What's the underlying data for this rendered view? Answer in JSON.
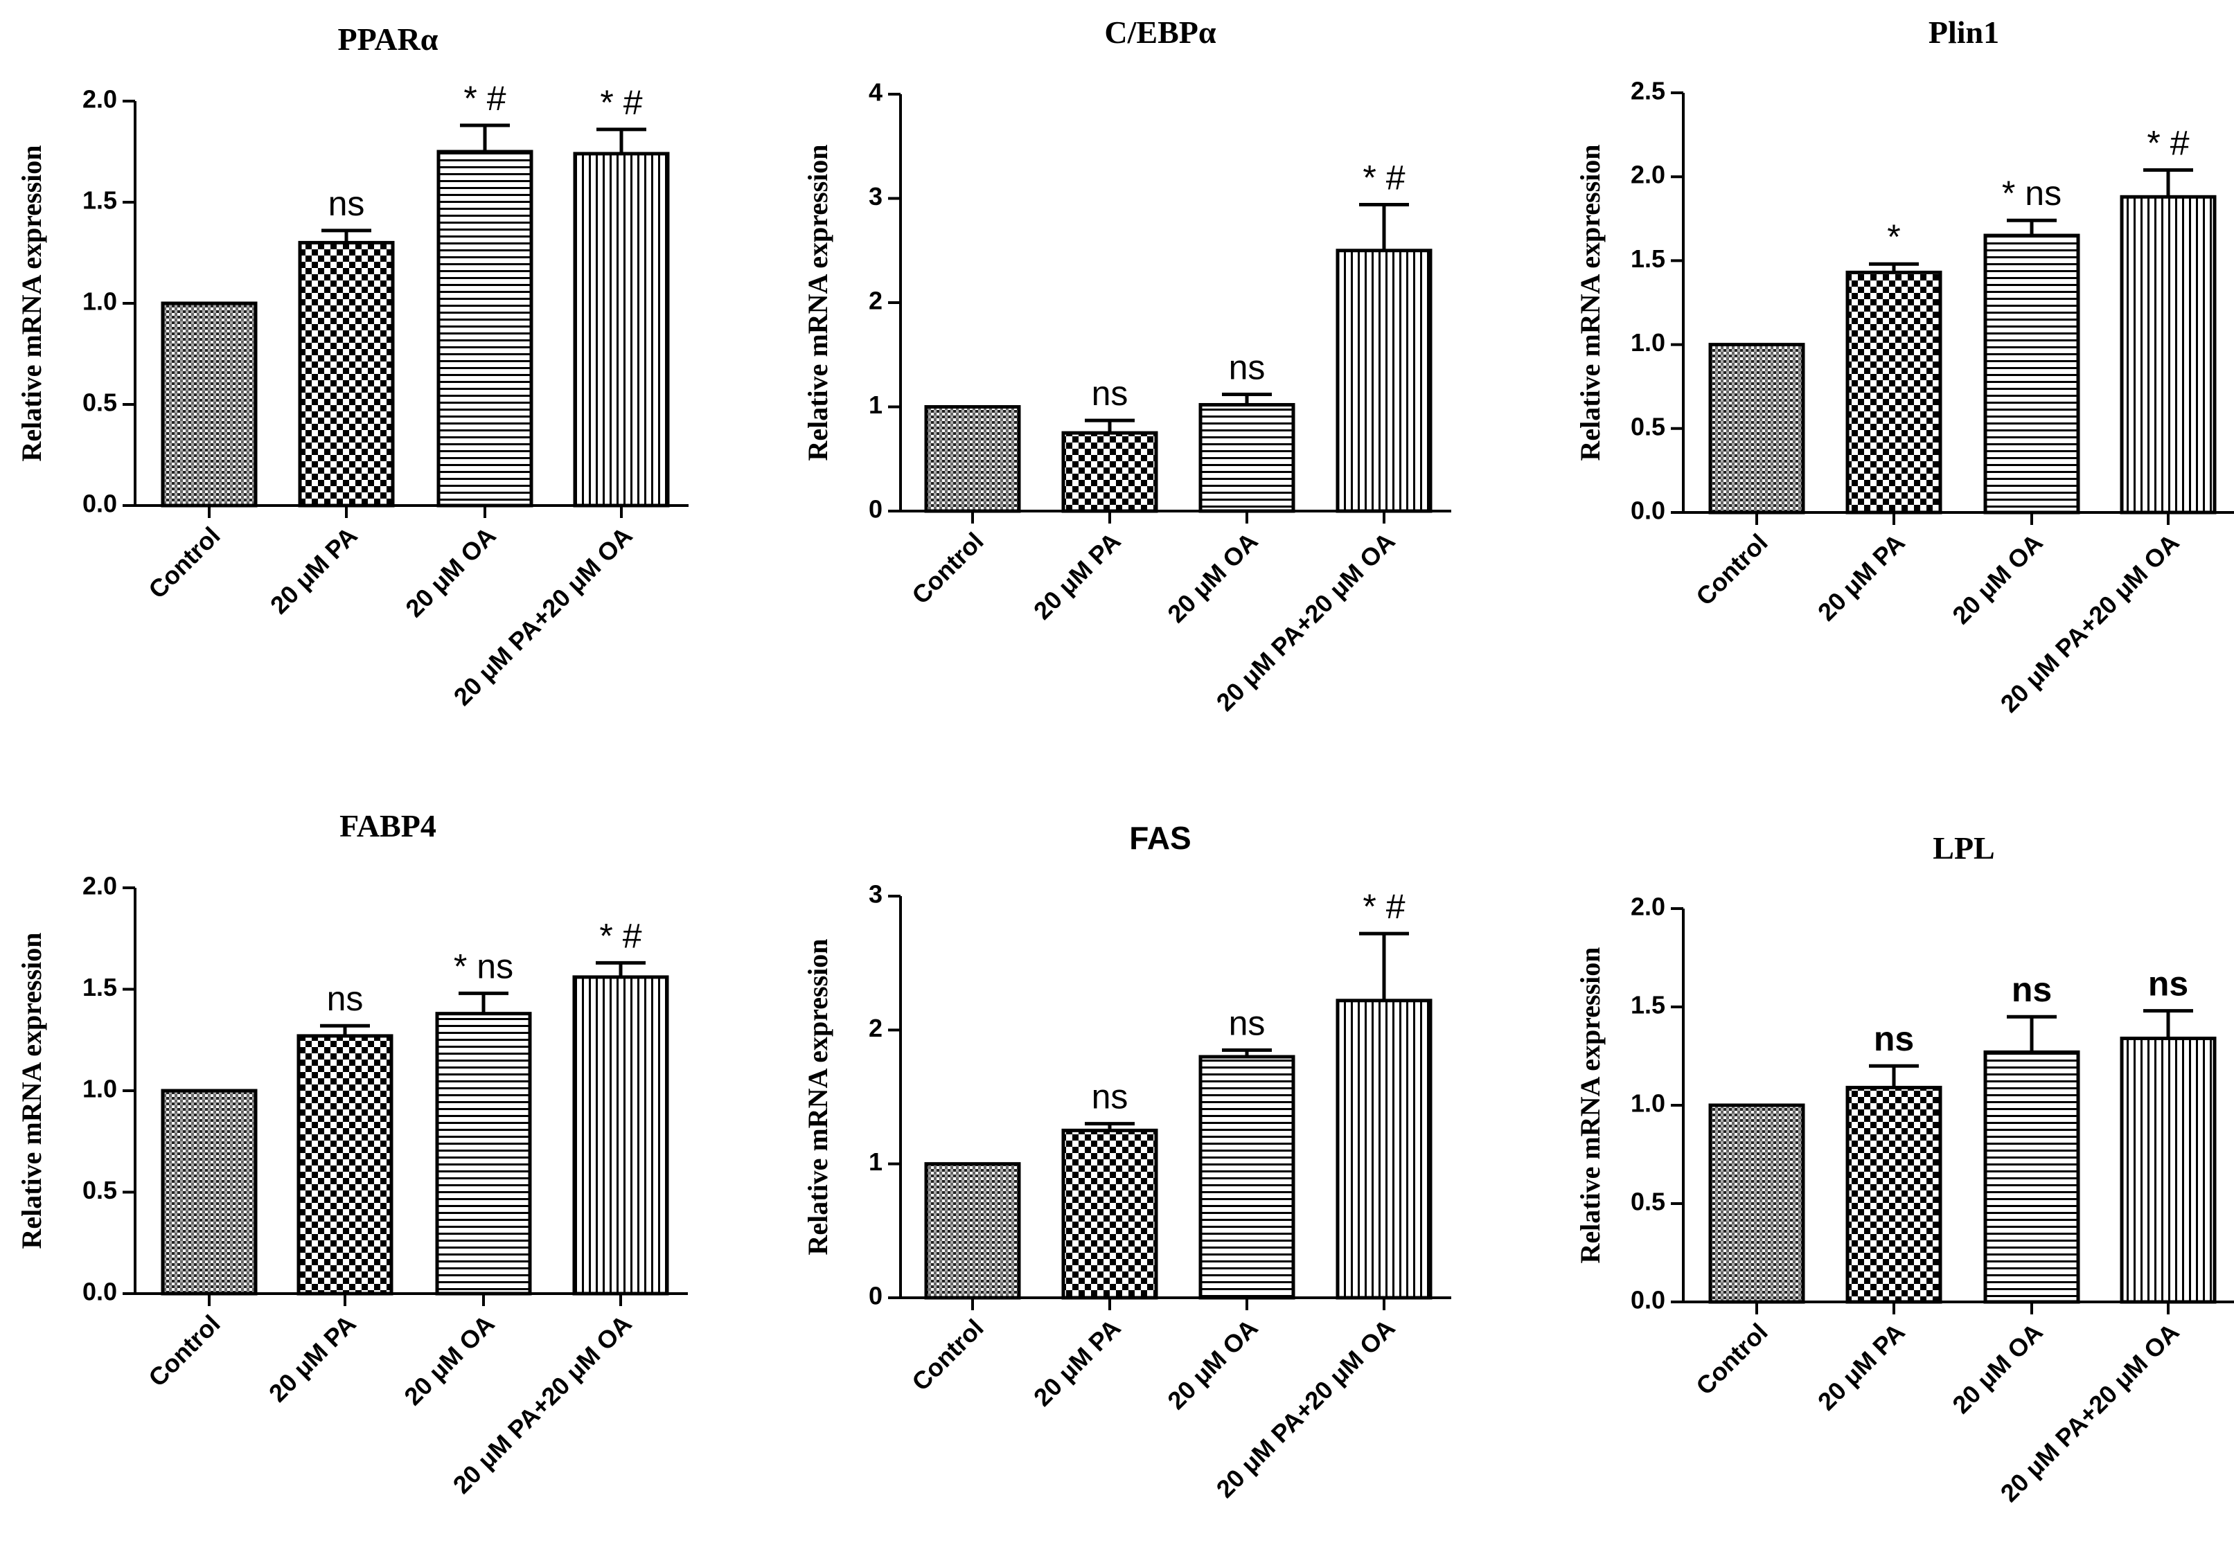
{
  "chart_data": [
    {
      "type": "bar",
      "title": "PPARα",
      "ylabel": "Relative mRNA expression",
      "xlabel": "",
      "ylim": [
        0,
        2.0
      ],
      "yticks": [
        "0.0",
        "0.5",
        "1.0",
        "1.5",
        "2.0"
      ],
      "categories": [
        "Control",
        "20 μM PA",
        "20 μM OA",
        "20 μM PA+20 μM OA"
      ],
      "values": [
        1.0,
        1.3,
        1.75,
        1.74
      ],
      "errors": [
        0.0,
        0.06,
        0.13,
        0.12
      ],
      "annotations": [
        "",
        "ns",
        "* #",
        "* #"
      ]
    },
    {
      "type": "bar",
      "title": "C/EBPα",
      "ylabel": "Relative mRNA expression",
      "xlabel": "",
      "ylim": [
        0,
        4
      ],
      "yticks": [
        "0",
        "1",
        "2",
        "3",
        "4"
      ],
      "categories": [
        "Control",
        "20 μM PA",
        "20 μM OA",
        "20 μM PA+20 μM OA"
      ],
      "values": [
        1.0,
        0.75,
        1.02,
        2.5
      ],
      "errors": [
        0.0,
        0.12,
        0.1,
        0.44
      ],
      "annotations": [
        "",
        "ns",
        "ns",
        "* #"
      ]
    },
    {
      "type": "bar",
      "title": "Plin1",
      "ylabel": "Relative mRNA expression",
      "xlabel": "",
      "ylim": [
        0,
        2.5
      ],
      "yticks": [
        "0.0",
        "0.5",
        "1.0",
        "1.5",
        "2.0",
        "2.5"
      ],
      "categories": [
        "Control",
        "20 μM PA",
        "20 μM OA",
        "20 μM PA+20 μM OA"
      ],
      "values": [
        1.0,
        1.43,
        1.65,
        1.88
      ],
      "errors": [
        0.0,
        0.05,
        0.09,
        0.16
      ],
      "annotations": [
        "",
        "*",
        "* ns",
        "* #"
      ]
    },
    {
      "type": "bar",
      "title": "FABP4",
      "ylabel": "Relative mRNA expression",
      "xlabel": "",
      "ylim": [
        0,
        2.0
      ],
      "yticks": [
        "0.0",
        "0.5",
        "1.0",
        "1.5",
        "2.0"
      ],
      "categories": [
        "Control",
        "20 μM PA",
        "20 μM OA",
        "20 μM PA+20 μM OA"
      ],
      "values": [
        1.0,
        1.27,
        1.38,
        1.56
      ],
      "errors": [
        0.0,
        0.05,
        0.1,
        0.07
      ],
      "annotations": [
        "",
        "ns",
        "* ns",
        "* #"
      ]
    },
    {
      "type": "bar",
      "title": "FAS",
      "ylabel": "Relative mRNA expression",
      "xlabel": "",
      "ylim": [
        0,
        3
      ],
      "yticks": [
        "0",
        "1",
        "2",
        "3"
      ],
      "categories": [
        "Control",
        "20 μM PA",
        "20 μM OA",
        "20 μM PA+20 μM OA"
      ],
      "values": [
        1.0,
        1.25,
        1.8,
        2.22
      ],
      "errors": [
        0.0,
        0.05,
        0.05,
        0.5
      ],
      "annotations": [
        "",
        "ns",
        "ns",
        "* #"
      ]
    },
    {
      "type": "bar",
      "title": "LPL",
      "ylabel": "Relative mRNA expression",
      "xlabel": "",
      "ylim": [
        0,
        2.0
      ],
      "yticks": [
        "0.0",
        "0.5",
        "1.0",
        "1.5",
        "2.0"
      ],
      "categories": [
        "Control",
        "20 μM PA",
        "20 μM OA",
        "20 μM PA+20 μM OA"
      ],
      "values": [
        1.0,
        1.09,
        1.27,
        1.34
      ],
      "errors": [
        0.0,
        0.11,
        0.18,
        0.14
      ],
      "annotations": [
        "",
        "ns",
        "ns",
        "ns"
      ]
    }
  ]
}
